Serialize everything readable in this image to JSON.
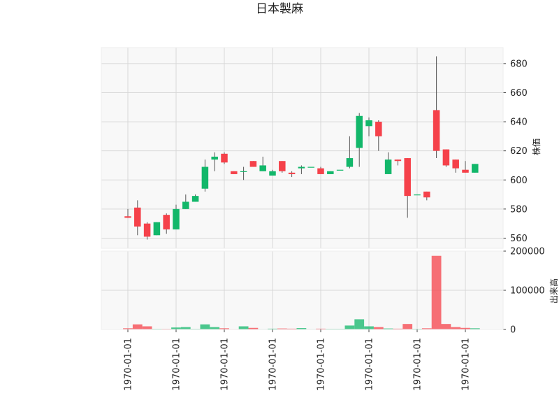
{
  "chart_data": {
    "type": "candlestick",
    "title": "日本製麻",
    "up_color": "#12b76a",
    "down_color": "#f5414a",
    "panel_background": "#f8f8f8",
    "grid": true,
    "x_tick_labels": [
      "1970-01-01",
      "1970-01-01",
      "1970-01-01",
      "1970-01-01",
      "1970-01-01",
      "1970-01-01",
      "1970-01-01",
      "1970-01-01"
    ],
    "price_panel": {
      "ylabel": "株価",
      "ylim": [
        553,
        691
      ],
      "yticks": [
        560,
        580,
        600,
        620,
        640,
        660,
        680
      ],
      "candles": [
        {
          "open": 575,
          "high": 580,
          "low": 574,
          "close": 574
        },
        {
          "open": 581,
          "high": 586,
          "low": 562,
          "close": 568
        },
        {
          "open": 570,
          "high": 571,
          "low": 559,
          "close": 561
        },
        {
          "open": 562,
          "high": 571,
          "low": 562,
          "close": 571
        },
        {
          "open": 576,
          "high": 577,
          "low": 563,
          "close": 566
        },
        {
          "open": 566,
          "high": 583,
          "low": 566,
          "close": 580
        },
        {
          "open": 580,
          "high": 590,
          "low": 580,
          "close": 585
        },
        {
          "open": 585,
          "high": 590,
          "low": 585,
          "close": 589
        },
        {
          "open": 594,
          "high": 614,
          "low": 592,
          "close": 609
        },
        {
          "open": 614,
          "high": 619,
          "low": 606,
          "close": 616
        },
        {
          "open": 618,
          "high": 619,
          "low": 611,
          "close": 612
        },
        {
          "open": 606,
          "high": 606,
          "low": 604,
          "close": 604
        },
        {
          "open": 606,
          "high": 609,
          "low": 600,
          "close": 606
        },
        {
          "open": 613,
          "high": 613,
          "low": 609,
          "close": 609
        },
        {
          "open": 606,
          "high": 616,
          "low": 606,
          "close": 610
        },
        {
          "open": 603,
          "high": 607,
          "low": 603,
          "close": 606
        },
        {
          "open": 613,
          "high": 613,
          "low": 605,
          "close": 606
        },
        {
          "open": 605,
          "high": 606,
          "low": 602,
          "close": 604
        },
        {
          "open": 608,
          "high": 610,
          "low": 604,
          "close": 609
        },
        {
          "open": 609,
          "high": 609,
          "low": 609,
          "close": 609
        },
        {
          "open": 608,
          "high": 609,
          "low": 604,
          "close": 604
        },
        {
          "open": 604,
          "high": 606,
          "low": 604,
          "close": 606
        },
        {
          "open": 607,
          "high": 607,
          "low": 607,
          "close": 607
        },
        {
          "open": 609,
          "high": 630,
          "low": 608,
          "close": 615
        },
        {
          "open": 622,
          "high": 646,
          "low": 609,
          "close": 644
        },
        {
          "open": 637,
          "high": 643,
          "low": 630,
          "close": 641
        },
        {
          "open": 640,
          "high": 641,
          "low": 620,
          "close": 630
        },
        {
          "open": 604,
          "high": 619,
          "low": 604,
          "close": 614
        },
        {
          "open": 614,
          "high": 614,
          "low": 610,
          "close": 613
        },
        {
          "open": 615,
          "high": 615,
          "low": 574,
          "close": 589
        },
        {
          "open": 590,
          "high": 590,
          "low": 590,
          "close": 590
        },
        {
          "open": 592,
          "high": 592,
          "low": 586,
          "close": 588
        },
        {
          "open": 648,
          "high": 685,
          "low": 615,
          "close": 620
        },
        {
          "open": 621,
          "high": 621,
          "low": 609,
          "close": 610
        },
        {
          "open": 614,
          "high": 614,
          "low": 605,
          "close": 608
        },
        {
          "open": 607,
          "high": 613,
          "low": 605,
          "close": 605
        },
        {
          "open": 605,
          "high": 611,
          "low": 605,
          "close": 611
        }
      ]
    },
    "volume_panel": {
      "ylabel": "出来高",
      "ylim": [
        0,
        200000
      ],
      "yticks": [
        0,
        100000,
        200000
      ],
      "volumes": [
        3000,
        13000,
        8000,
        1500,
        1500,
        5000,
        6000,
        1500,
        13000,
        6000,
        3000,
        1000,
        8000,
        4000,
        1000,
        2000,
        2500,
        2000,
        3500,
        1000,
        2000,
        1500,
        1500,
        10000,
        26000,
        8000,
        6000,
        2500,
        2000,
        14000,
        1500,
        3000,
        188000,
        14000,
        6000,
        4000,
        3000
      ]
    }
  }
}
